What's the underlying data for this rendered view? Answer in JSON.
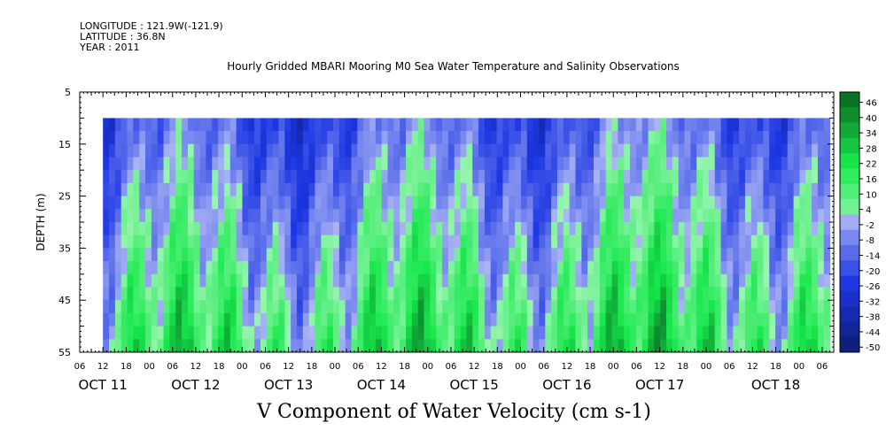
{
  "header": {
    "longitude": "LONGITUDE : 121.9W(-121.9)",
    "latitude": "LATITUDE : 36.8N",
    "year": "YEAR : 2011"
  },
  "chart_data": {
    "type": "heatmap",
    "title": "Hourly Gridded MBARI Mooring M0 Sea Water Temperature and Salinity Observations",
    "variable_label": "V Component of Water Velocity (cm s-1)",
    "ylabel": "DEPTH (m)",
    "y_range": [
      5,
      55
    ],
    "y_inverted": true,
    "y_ticks": [
      "5",
      "15",
      "25",
      "35",
      "45",
      "55"
    ],
    "x_range_hours": [
      "2011-10-10T06:00",
      "2011-10-18T09:00"
    ],
    "data_time_range": [
      "2011-10-10T12:00",
      "2011-10-18T08:00"
    ],
    "data_depth_range": [
      10,
      55
    ],
    "hour_tick_labels": [
      "06",
      "12",
      "18",
      "00",
      "06",
      "12",
      "18",
      "00",
      "06",
      "12",
      "18",
      "00",
      "06",
      "12",
      "18",
      "00",
      "06",
      "12",
      "18",
      "00",
      "06",
      "12",
      "18",
      "00",
      "06",
      "12",
      "18",
      "00",
      "06",
      "12",
      "18",
      "00",
      "06"
    ],
    "day_labels": [
      "OCT 11",
      "OCT 12",
      "OCT 13",
      "OCT 14",
      "OCT 15",
      "OCT 16",
      "OCT 17",
      "OCT 18"
    ],
    "colorbar": {
      "min": -50,
      "max": 50,
      "step": 6,
      "tick_labels": [
        "46",
        "40",
        "34",
        "28",
        "22",
        "16",
        "10",
        "4",
        "-2",
        "-8",
        "-14",
        "-20",
        "-26",
        "-32",
        "-38",
        "-44",
        "-50"
      ]
    },
    "grid": false
  }
}
